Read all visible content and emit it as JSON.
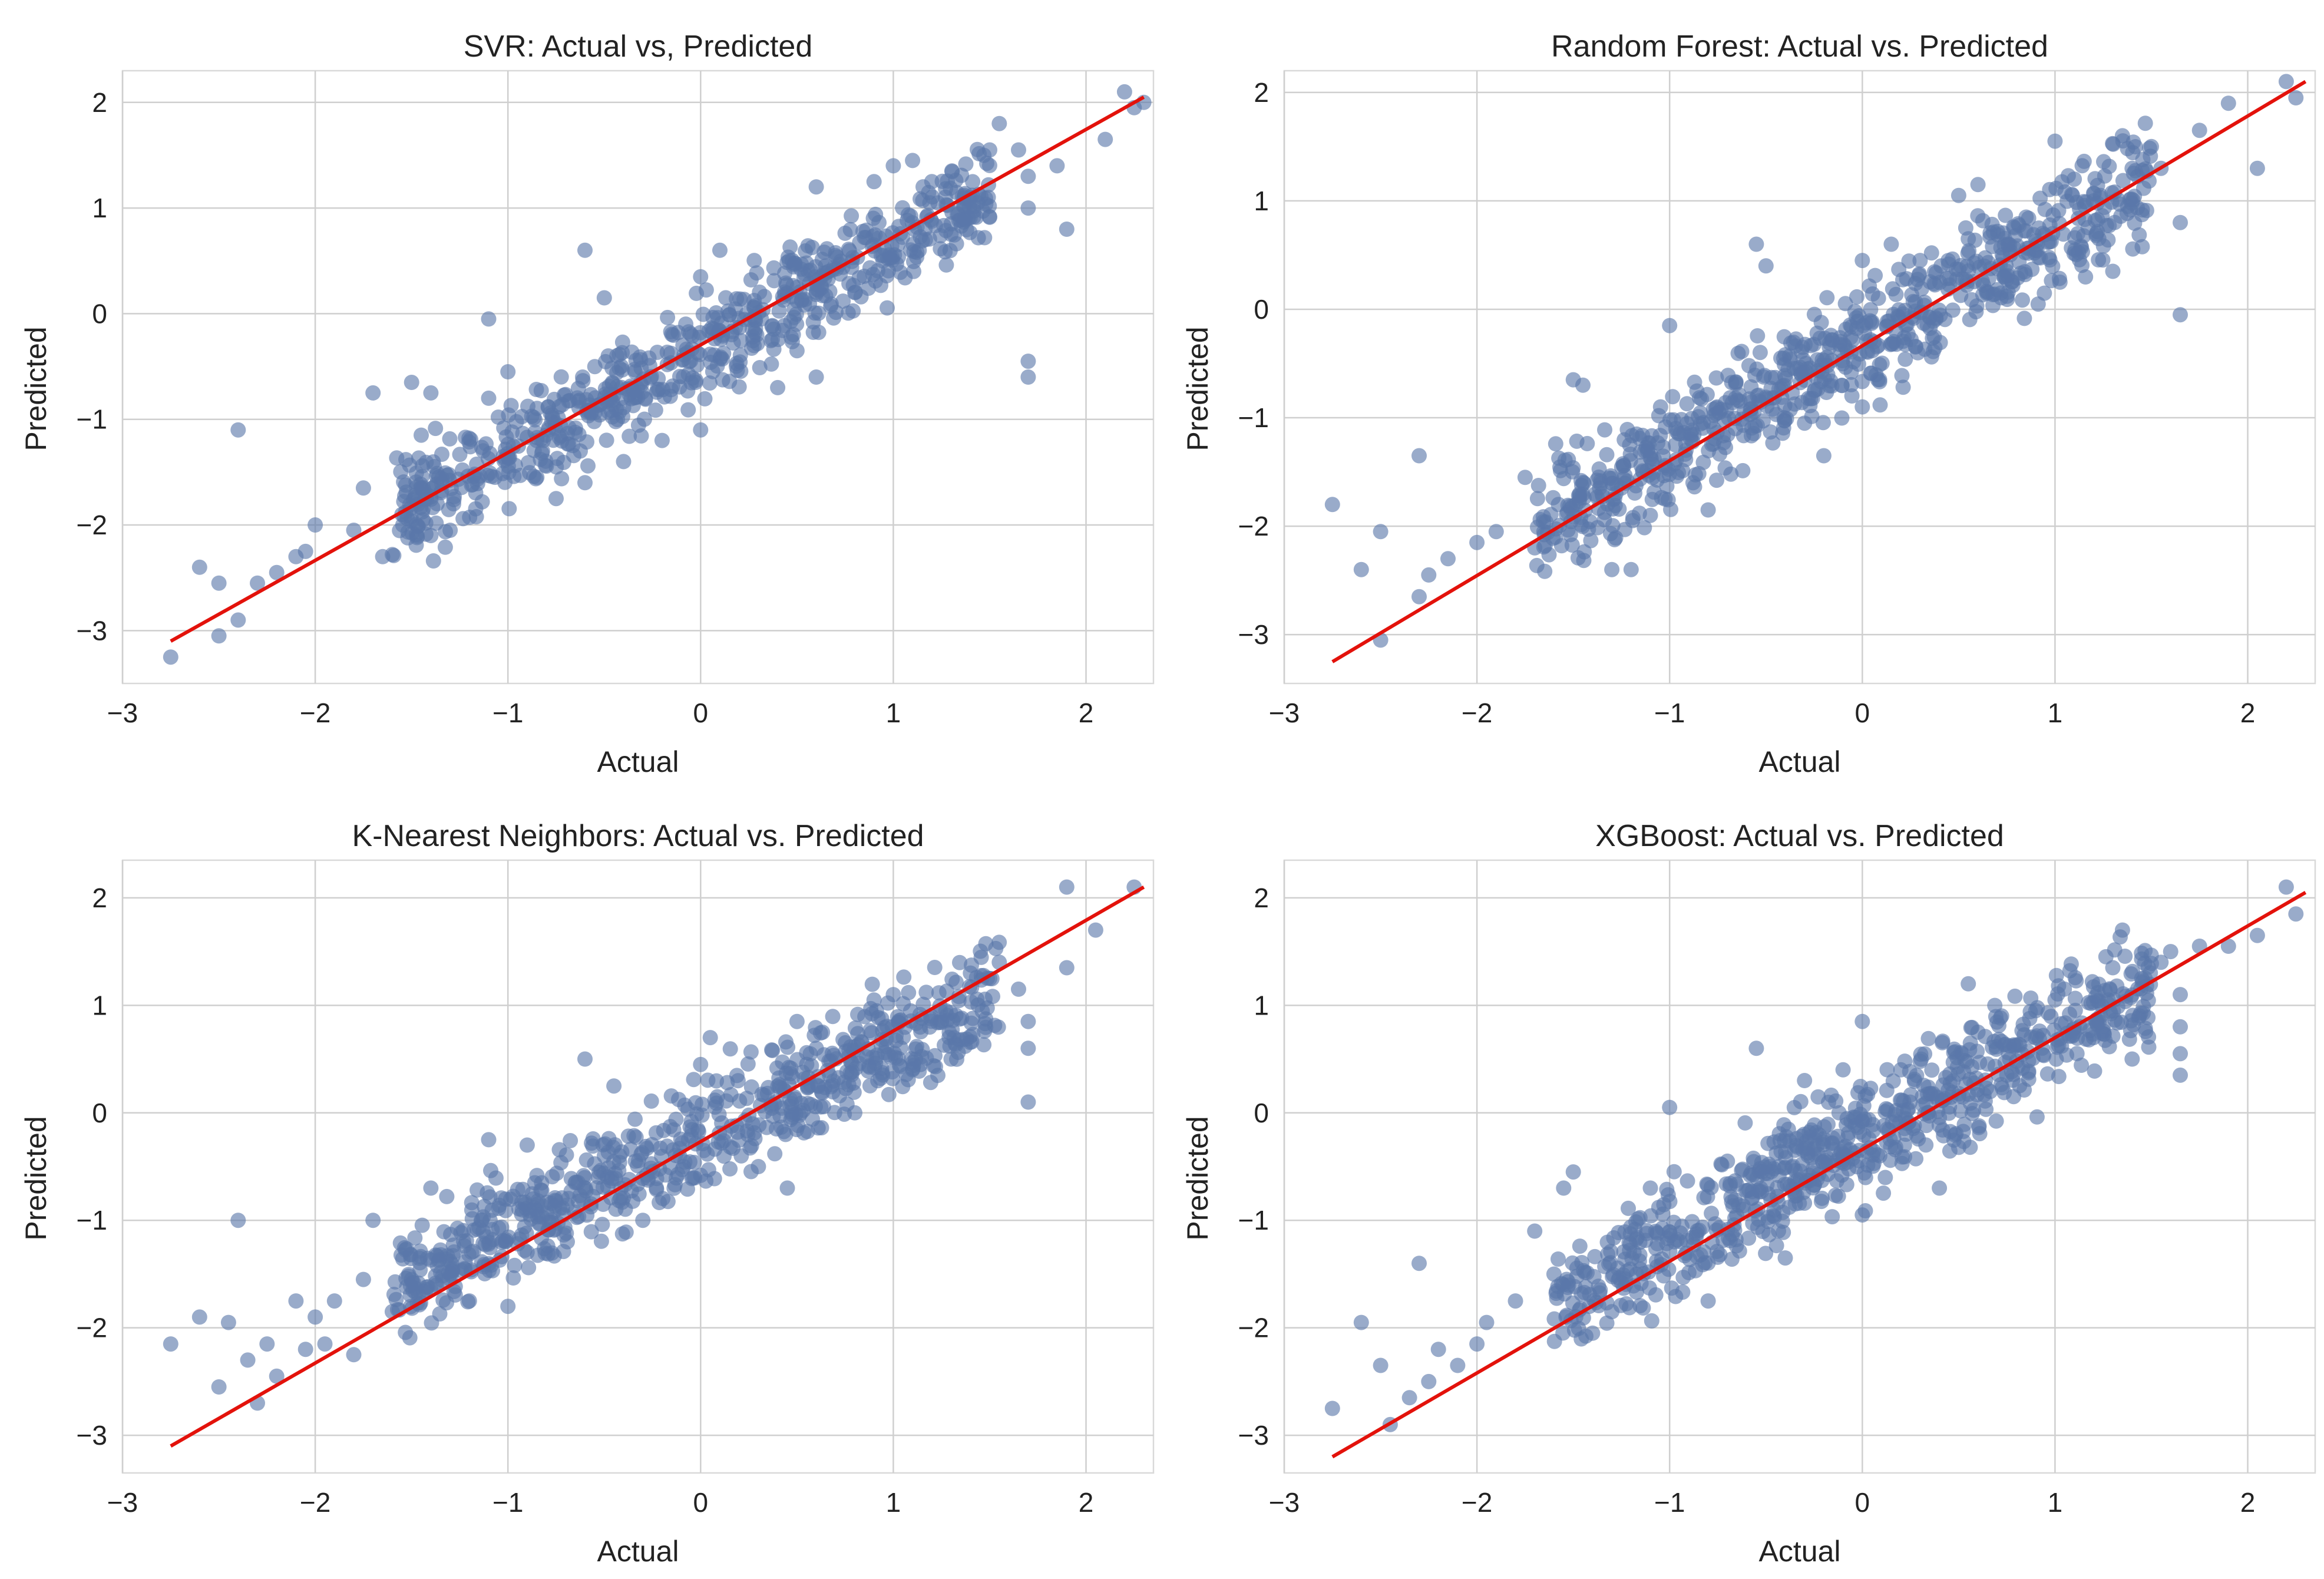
{
  "chart_data": [
    {
      "type": "scatter",
      "title": "SVR: Actual vs, Predicted",
      "xlabel": "Actual",
      "ylabel": "Predicted",
      "xlim": [
        -3,
        2.35
      ],
      "ylim": [
        -3.5,
        2.3
      ],
      "xticks": [
        -3,
        -2,
        -1,
        0,
        1,
        2
      ],
      "yticks": [
        -3,
        -2,
        -1,
        0,
        1,
        2
      ],
      "xtick_labels": [
        "−3",
        "−2",
        "−1",
        "0",
        "1",
        "2"
      ],
      "ytick_labels": [
        "−3",
        "−2",
        "−1",
        "0",
        "1",
        "2"
      ],
      "grid": true,
      "line": {
        "x": [
          -2.75,
          2.3
        ],
        "y": [
          -3.1,
          2.05
        ],
        "color": "#e3120b"
      },
      "point_color": "#5a78aa",
      "band": {
        "slope": 1.0,
        "intercept": -0.35,
        "spread": 0.32,
        "n": 700,
        "xmin": -1.6,
        "xmax": 1.5,
        "seed": 11
      },
      "outliers": [
        [
          -2.75,
          -3.25
        ],
        [
          -2.6,
          -2.4
        ],
        [
          -2.5,
          -3.05
        ],
        [
          -2.5,
          -2.55
        ],
        [
          -2.4,
          -2.9
        ],
        [
          -2.4,
          -1.1
        ],
        [
          -2.3,
          -2.55
        ],
        [
          -2.2,
          -2.45
        ],
        [
          -2.1,
          -2.3
        ],
        [
          -2.05,
          -2.25
        ],
        [
          -2.0,
          -2.0
        ],
        [
          -1.8,
          -2.05
        ],
        [
          -1.75,
          -1.65
        ],
        [
          -1.7,
          -0.75
        ],
        [
          -1.65,
          -2.3
        ],
        [
          -1.55,
          -1.9
        ],
        [
          -1.5,
          -0.65
        ],
        [
          -1.45,
          -1.15
        ],
        [
          -1.4,
          -2.1
        ],
        [
          -1.4,
          -0.75
        ],
        [
          -1.3,
          -2.05
        ],
        [
          -1.1,
          -0.8
        ],
        [
          -1.1,
          -0.05
        ],
        [
          -1.0,
          -0.55
        ],
        [
          -0.85,
          -1.55
        ],
        [
          -0.75,
          -1.75
        ],
        [
          -0.6,
          -1.6
        ],
        [
          -0.6,
          0.6
        ],
        [
          -0.5,
          0.15
        ],
        [
          -0.4,
          -1.4
        ],
        [
          -0.2,
          -1.2
        ],
        [
          0.0,
          -1.1
        ],
        [
          0.0,
          0.35
        ],
        [
          0.1,
          0.6
        ],
        [
          0.4,
          -0.7
        ],
        [
          0.5,
          -0.35
        ],
        [
          0.6,
          1.2
        ],
        [
          0.6,
          -0.6
        ],
        [
          0.7,
          0.55
        ],
        [
          0.8,
          0.2
        ],
        [
          0.9,
          1.25
        ],
        [
          1.0,
          1.4
        ],
        [
          1.1,
          1.45
        ],
        [
          1.2,
          1.25
        ],
        [
          1.3,
          0.85
        ],
        [
          1.4,
          1.1
        ],
        [
          1.5,
          1.55
        ],
        [
          1.55,
          1.8
        ],
        [
          1.65,
          1.55
        ],
        [
          1.7,
          1.3
        ],
        [
          1.7,
          1.0
        ],
        [
          1.7,
          -0.45
        ],
        [
          1.7,
          -0.6
        ],
        [
          1.85,
          1.4
        ],
        [
          1.9,
          0.8
        ],
        [
          2.1,
          1.65
        ],
        [
          2.2,
          2.1
        ],
        [
          2.25,
          1.95
        ],
        [
          2.3,
          2.0
        ]
      ]
    },
    {
      "type": "scatter",
      "title": "Random Forest: Actual vs. Predicted",
      "xlabel": "Actual",
      "ylabel": "Predicted",
      "xlim": [
        -3,
        2.35
      ],
      "ylim": [
        -3.45,
        2.2
      ],
      "xticks": [
        -3,
        -2,
        -1,
        0,
        1,
        2
      ],
      "yticks": [
        -3,
        -2,
        -1,
        0,
        1,
        2
      ],
      "xtick_labels": [
        "−3",
        "−2",
        "−1",
        "0",
        "1",
        "2"
      ],
      "ytick_labels": [
        "−3",
        "−2",
        "−1",
        "0",
        "1",
        "2"
      ],
      "grid": true,
      "line": {
        "x": [
          -2.75,
          2.3
        ],
        "y": [
          -3.25,
          2.1
        ],
        "color": "#e3120b"
      },
      "point_color": "#5a78aa",
      "band": {
        "slope": 1.0,
        "intercept": -0.3,
        "spread": 0.36,
        "n": 750,
        "xmin": -1.7,
        "xmax": 1.5,
        "seed": 23
      },
      "outliers": [
        [
          -2.75,
          -1.8
        ],
        [
          -2.6,
          -2.4
        ],
        [
          -2.5,
          -3.05
        ],
        [
          -2.5,
          -2.05
        ],
        [
          -2.3,
          -2.65
        ],
        [
          -2.3,
          -1.35
        ],
        [
          -2.25,
          -2.45
        ],
        [
          -2.15,
          -2.3
        ],
        [
          -2.0,
          -2.15
        ],
        [
          -1.9,
          -2.05
        ],
        [
          -1.75,
          -1.55
        ],
        [
          -1.7,
          -2.2
        ],
        [
          -1.5,
          -0.65
        ],
        [
          -1.45,
          -0.7
        ],
        [
          -1.3,
          -2.4
        ],
        [
          -1.2,
          -2.4
        ],
        [
          -1.1,
          -1.9
        ],
        [
          -1.0,
          -0.15
        ],
        [
          -0.8,
          -1.85
        ],
        [
          -0.55,
          0.6
        ],
        [
          -0.5,
          0.4
        ],
        [
          -0.3,
          -1.05
        ],
        [
          -0.2,
          -1.35
        ],
        [
          0.0,
          0.45
        ],
        [
          0.0,
          -0.9
        ],
        [
          0.15,
          0.6
        ],
        [
          0.3,
          0.45
        ],
        [
          0.5,
          1.05
        ],
        [
          0.55,
          0.65
        ],
        [
          0.6,
          1.15
        ],
        [
          0.75,
          0.35
        ],
        [
          0.85,
          0.85
        ],
        [
          1.0,
          1.55
        ],
        [
          1.1,
          1.2
        ],
        [
          1.2,
          1.0
        ],
        [
          1.3,
          0.35
        ],
        [
          1.35,
          1.6
        ],
        [
          1.4,
          1.3
        ],
        [
          1.5,
          1.5
        ],
        [
          1.55,
          1.3
        ],
        [
          1.65,
          0.8
        ],
        [
          1.65,
          -0.05
        ],
        [
          1.75,
          1.65
        ],
        [
          1.9,
          1.9
        ],
        [
          2.05,
          1.3
        ],
        [
          2.2,
          2.1
        ],
        [
          2.25,
          1.95
        ]
      ]
    },
    {
      "type": "scatter",
      "title": "K-Nearest Neighbors: Actual vs. Predicted",
      "xlabel": "Actual",
      "ylabel": "Predicted",
      "xlim": [
        -3,
        2.35
      ],
      "ylim": [
        -3.35,
        2.35
      ],
      "xticks": [
        -3,
        -2,
        -1,
        0,
        1,
        2
      ],
      "yticks": [
        -3,
        -2,
        -1,
        0,
        1,
        2
      ],
      "xtick_labels": [
        "−3",
        "−2",
        "−1",
        "0",
        "1",
        "2"
      ],
      "ytick_labels": [
        "−3",
        "−2",
        "−1",
        "0",
        "1",
        "2"
      ],
      "grid": true,
      "line": {
        "x": [
          -2.75,
          2.3
        ],
        "y": [
          -3.1,
          2.1
        ],
        "color": "#e3120b"
      },
      "point_color": "#5a78aa",
      "band": {
        "slope": 0.88,
        "intercept": -0.22,
        "spread": 0.35,
        "n": 720,
        "xmin": -1.6,
        "xmax": 1.55,
        "seed": 37
      },
      "outliers": [
        [
          -2.75,
          -2.15
        ],
        [
          -2.6,
          -1.9
        ],
        [
          -2.5,
          -2.55
        ],
        [
          -2.45,
          -1.95
        ],
        [
          -2.4,
          -1.0
        ],
        [
          -2.35,
          -2.3
        ],
        [
          -2.3,
          -2.7
        ],
        [
          -2.25,
          -2.15
        ],
        [
          -2.2,
          -2.45
        ],
        [
          -2.1,
          -1.75
        ],
        [
          -2.05,
          -2.2
        ],
        [
          -2.0,
          -1.9
        ],
        [
          -1.95,
          -2.15
        ],
        [
          -1.9,
          -1.75
        ],
        [
          -1.8,
          -2.25
        ],
        [
          -1.75,
          -1.55
        ],
        [
          -1.7,
          -1.0
        ],
        [
          -1.6,
          -1.85
        ],
        [
          -1.5,
          -1.55
        ],
        [
          -1.4,
          -0.7
        ],
        [
          -1.2,
          -1.75
        ],
        [
          -1.1,
          -0.25
        ],
        [
          -1.0,
          -1.8
        ],
        [
          -0.9,
          -0.3
        ],
        [
          -0.6,
          0.5
        ],
        [
          -0.45,
          0.25
        ],
        [
          -0.3,
          -1.0
        ],
        [
          0.0,
          0.45
        ],
        [
          0.05,
          0.7
        ],
        [
          0.3,
          -0.5
        ],
        [
          0.45,
          -0.7
        ],
        [
          0.5,
          0.85
        ],
        [
          0.6,
          0.6
        ],
        [
          0.8,
          0.0
        ],
        [
          0.9,
          1.05
        ],
        [
          1.0,
          1.1
        ],
        [
          1.1,
          0.4
        ],
        [
          1.3,
          0.5
        ],
        [
          1.4,
          1.3
        ],
        [
          1.5,
          1.25
        ],
        [
          1.55,
          1.4
        ],
        [
          1.65,
          1.15
        ],
        [
          1.7,
          0.85
        ],
        [
          1.7,
          0.6
        ],
        [
          1.7,
          0.1
        ],
        [
          1.9,
          2.1
        ],
        [
          1.9,
          1.35
        ],
        [
          2.05,
          1.7
        ],
        [
          2.25,
          2.1
        ]
      ]
    },
    {
      "type": "scatter",
      "title": "XGBoost: Actual vs.  Predicted",
      "xlabel": "Actual",
      "ylabel": "Predicted",
      "xlim": [
        -3,
        2.35
      ],
      "ylim": [
        -3.35,
        2.35
      ],
      "xticks": [
        -3,
        -2,
        -1,
        0,
        1,
        2
      ],
      "yticks": [
        -3,
        -2,
        -1,
        0,
        1,
        2
      ],
      "xtick_labels": [
        "−3",
        "−2",
        "−1",
        "0",
        "1",
        "2"
      ],
      "ytick_labels": [
        "−3",
        "−2",
        "−1",
        "0",
        "1",
        "2"
      ],
      "grid": true,
      "line": {
        "x": [
          -2.75,
          2.3
        ],
        "y": [
          -3.2,
          2.05
        ],
        "color": "#e3120b"
      },
      "point_color": "#5a78aa",
      "band": {
        "slope": 0.95,
        "intercept": -0.25,
        "spread": 0.36,
        "n": 760,
        "xmin": -1.6,
        "xmax": 1.5,
        "seed": 51
      },
      "outliers": [
        [
          -2.75,
          -2.75
        ],
        [
          -2.6,
          -1.95
        ],
        [
          -2.5,
          -2.35
        ],
        [
          -2.45,
          -2.9
        ],
        [
          -2.35,
          -2.65
        ],
        [
          -2.3,
          -1.4
        ],
        [
          -2.25,
          -2.5
        ],
        [
          -2.2,
          -2.2
        ],
        [
          -2.1,
          -2.35
        ],
        [
          -2.0,
          -2.15
        ],
        [
          -1.95,
          -1.95
        ],
        [
          -1.8,
          -1.75
        ],
        [
          -1.7,
          -1.1
        ],
        [
          -1.6,
          -1.5
        ],
        [
          -1.55,
          -0.7
        ],
        [
          -1.5,
          -0.55
        ],
        [
          -1.4,
          -2.05
        ],
        [
          -1.3,
          -1.85
        ],
        [
          -1.1,
          -0.7
        ],
        [
          -1.0,
          0.05
        ],
        [
          -0.8,
          -1.75
        ],
        [
          -0.7,
          -0.45
        ],
        [
          -0.55,
          0.6
        ],
        [
          -0.4,
          -1.35
        ],
        [
          -0.3,
          0.3
        ],
        [
          -0.1,
          0.4
        ],
        [
          0.0,
          0.85
        ],
        [
          0.0,
          -0.95
        ],
        [
          0.2,
          0.4
        ],
        [
          0.4,
          -0.7
        ],
        [
          0.55,
          1.2
        ],
        [
          0.6,
          0.75
        ],
        [
          0.75,
          0.35
        ],
        [
          0.9,
          0.95
        ],
        [
          1.0,
          1.05
        ],
        [
          1.1,
          0.75
        ],
        [
          1.2,
          0.7
        ],
        [
          1.3,
          1.35
        ],
        [
          1.35,
          1.7
        ],
        [
          1.4,
          0.5
        ],
        [
          1.45,
          1.25
        ],
        [
          1.55,
          1.4
        ],
        [
          1.6,
          1.5
        ],
        [
          1.65,
          1.1
        ],
        [
          1.65,
          0.8
        ],
        [
          1.65,
          0.55
        ],
        [
          1.65,
          0.35
        ],
        [
          1.75,
          1.55
        ],
        [
          1.9,
          1.55
        ],
        [
          2.05,
          1.65
        ],
        [
          2.2,
          2.1
        ],
        [
          2.25,
          1.85
        ]
      ]
    }
  ]
}
